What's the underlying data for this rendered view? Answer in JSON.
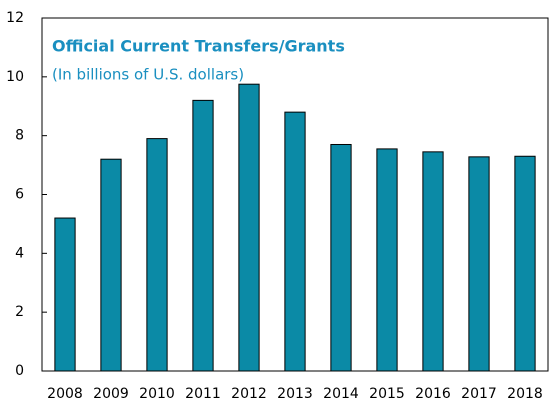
{
  "chart_data": {
    "type": "bar",
    "title": "Official Current Transfers/Grants",
    "subtitle": "(In billions of U.S. dollars)",
    "categories": [
      "2008",
      "2009",
      "2010",
      "2011",
      "2012",
      "2013",
      "2014",
      "2015",
      "2016",
      "2017",
      "2018"
    ],
    "values": [
      5.2,
      7.2,
      7.9,
      9.2,
      9.75,
      8.8,
      7.7,
      7.55,
      7.45,
      7.28,
      7.3
    ],
    "color": "#0b8aa6",
    "ylim": [
      0,
      12
    ],
    "yticks": [
      0,
      2,
      4,
      6,
      8,
      10,
      12
    ],
    "grid": false
  }
}
